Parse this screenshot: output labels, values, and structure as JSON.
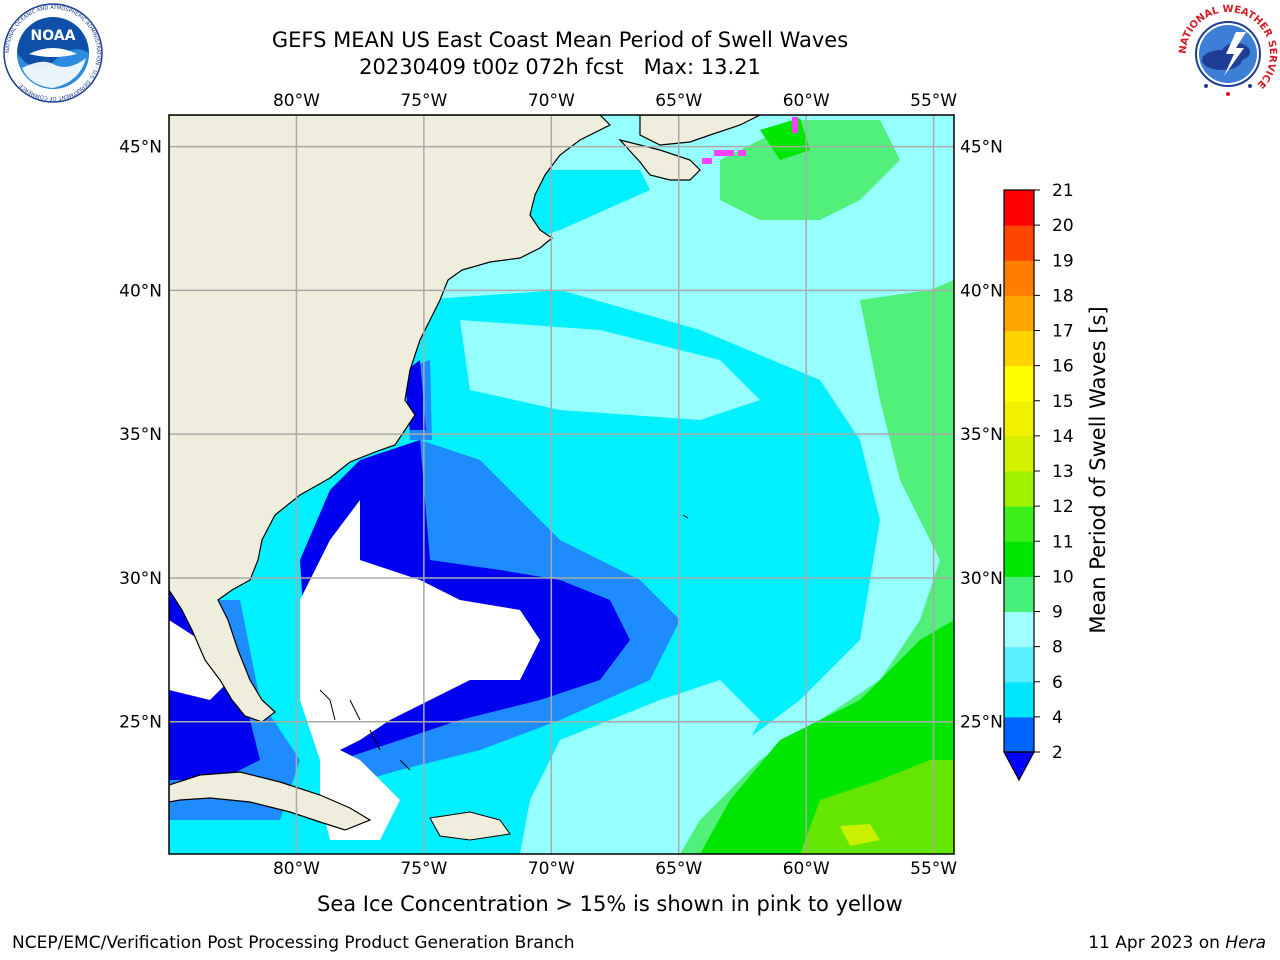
{
  "header": {
    "title_line1": "GEFS MEAN US East Coast Mean Period of Swell Waves",
    "title_line2": "20230409 t00z 072h fcst   Max: 13.21"
  },
  "logos": {
    "left": {
      "icon": "noaa-logo-icon",
      "text": "NOAA",
      "ring_text": "NATIONAL OCEANIC AND ATMOSPHERIC ADMINISTRATION · U.S. DEPARTMENT OF COMMERCE"
    },
    "right": {
      "icon": "nws-logo-icon",
      "ring_text": "NATIONAL WEATHER SERVICE"
    }
  },
  "map": {
    "projection": "cylindrical",
    "lon_labels": [
      "80°W",
      "75°W",
      "70°W",
      "65°W",
      "60°W",
      "55°W"
    ],
    "lat_labels": [
      "45°N",
      "40°N",
      "35°N",
      "30°N",
      "25°N"
    ],
    "lon_values": [
      -80,
      -75,
      -70,
      -65,
      -60,
      -55
    ],
    "lat_values": [
      45,
      40,
      35,
      30,
      25
    ],
    "extent": {
      "lon": [
        -85,
        -54.2
      ],
      "lat": [
        20.4,
        46.1
      ]
    },
    "gridlines": true,
    "land_color": "#efeedd",
    "gridline_color": "#aaaaaa"
  },
  "colorbar": {
    "label": "Mean Period of Swell Waves [s]",
    "ticks": [
      "2",
      "4",
      "6",
      "8",
      "9",
      "10",
      "11",
      "12",
      "13",
      "14",
      "15",
      "16",
      "17",
      "18",
      "19",
      "20",
      "21"
    ],
    "colors": [
      "#0064ff",
      "#00e6ff",
      "#5af0ff",
      "#a0ffff",
      "#46f07a",
      "#00e600",
      "#3cf01e",
      "#a0f000",
      "#d2f000",
      "#f0f000",
      "#ffff00",
      "#ffd200",
      "#ffa500",
      "#ff7d00",
      "#ff4600",
      "#ff0000"
    ],
    "under_color": "#0000ff"
  },
  "field_colors": {
    "under_2": "#ffffff",
    "c2_4": "#0000f0",
    "c4_6": "#1e8cff",
    "c6_8": "#00f0ff",
    "c8_9": "#96ffff",
    "c9_10": "#50f07a",
    "c10_11": "#00e600",
    "c11_12": "#64e600",
    "c12_13": "#c8f000",
    "c13_14": "#f0f064",
    "sea_ice": "#ff40ff"
  },
  "footnote": "Sea Ice Concentration > 15% is shown in pink to yellow",
  "credits": {
    "left": "NCEP/EMC/Verification Post Processing Product Generation Branch",
    "right_date": "11 Apr 2023 on",
    "right_machine": "Hera"
  }
}
